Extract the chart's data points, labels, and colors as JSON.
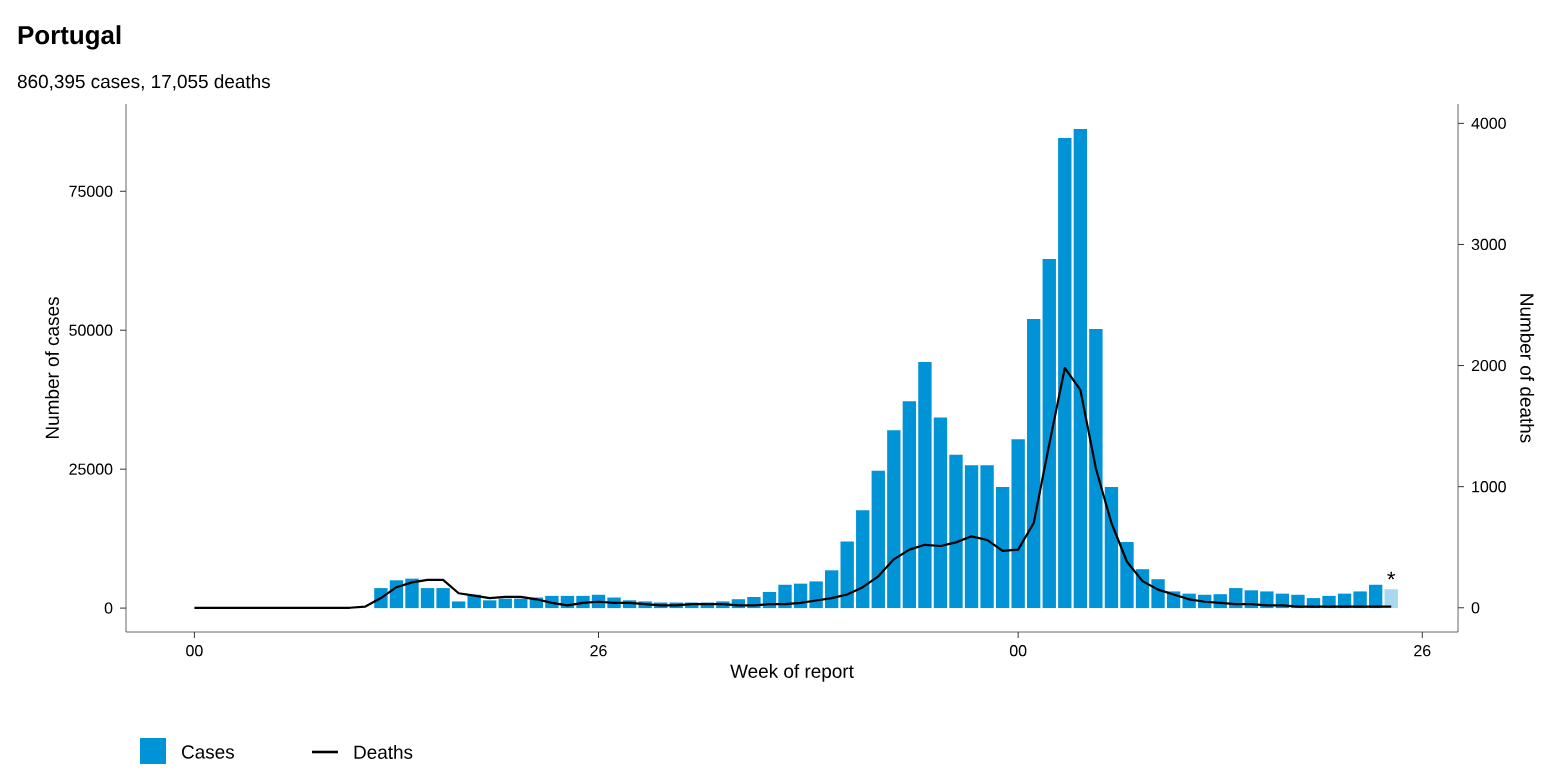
{
  "chart_data": {
    "type": "bar",
    "title": "Portugal",
    "subtitle": "860,395 cases, 17,055 deaths",
    "xlabel": "Week of report",
    "ylabel": "Number of cases",
    "y2label": "Number of deaths",
    "categories": [
      "00",
      null,
      null,
      null,
      null,
      null,
      null,
      null,
      null,
      null,
      null,
      null,
      null,
      null,
      null,
      null,
      null,
      null,
      null,
      null,
      null,
      null,
      null,
      null,
      null,
      null,
      "26",
      null,
      null,
      null,
      null,
      null,
      null,
      null,
      null,
      null,
      null,
      null,
      null,
      null,
      null,
      null,
      null,
      null,
      null,
      null,
      null,
      null,
      null,
      null,
      null,
      null,
      null,
      "00",
      null,
      null,
      null,
      null,
      null,
      null,
      null,
      null,
      null,
      null,
      null,
      null,
      null,
      null,
      null,
      null,
      null,
      null,
      null,
      null,
      null,
      null,
      null,
      null,
      null,
      "26"
    ],
    "ylim": [
      -4300,
      90700
    ],
    "yticks": [
      0,
      25000,
      50000,
      75000
    ],
    "y2lim": [
      -200,
      4160
    ],
    "y2ticks": [
      0,
      1000,
      2000,
      3000,
      4000
    ],
    "series": [
      {
        "name": "Cases",
        "color": "#0093d5",
        "colors": [
          "#0093d5",
          "#0093d5",
          "#0093d5",
          "#0093d5",
          "#0093d5",
          "#0093d5",
          "#0093d5",
          "#0093d5",
          "#0093d5",
          "#0093d5",
          "#0093d5",
          "#0093d5",
          "#0093d5",
          "#0093d5",
          "#0093d5",
          "#0093d5",
          "#0093d5",
          "#0093d5",
          "#0093d5",
          "#0093d5",
          "#0093d5",
          "#0093d5",
          "#0093d5",
          "#0093d5",
          "#0093d5",
          "#0093d5",
          "#0093d5",
          "#0093d5",
          "#0093d5",
          "#0093d5",
          "#0093d5",
          "#0093d5",
          "#0093d5",
          "#0093d5",
          "#0093d5",
          "#0093d5",
          "#0093d5",
          "#0093d5",
          "#0093d5",
          "#0093d5",
          "#0093d5",
          "#0093d5",
          "#0093d5",
          "#0093d5",
          "#0093d5",
          "#0093d5",
          "#0093d5",
          "#0093d5",
          "#0093d5",
          "#0093d5",
          "#0093d5",
          "#0093d5",
          "#0093d5",
          "#0093d5",
          "#0093d5",
          "#0093d5",
          "#0093d5",
          "#0093d5",
          "#0093d5",
          "#0093d5",
          "#0093d5",
          "#0093d5",
          "#0093d5",
          "#0093d5",
          "#0093d5",
          "#0093d5",
          "#0093d5",
          "#0093d5",
          "#0093d5",
          "#0093d5",
          "#0093d5",
          "#0093d5",
          "#0093d5",
          "#0093d5",
          "#0093d5",
          "#0093d5",
          "#0093d5",
          "#a8d8f0",
          "#0093d5",
          "#0093d5"
        ],
        "values": [
          0,
          0,
          0,
          0,
          0,
          0,
          0,
          0,
          0,
          0,
          0,
          0,
          3600,
          5000,
          5300,
          3600,
          3600,
          1200,
          2400,
          1400,
          1700,
          1700,
          1900,
          2200,
          2200,
          2200,
          2400,
          1900,
          1400,
          1200,
          1000,
          1000,
          1000,
          1000,
          1200,
          1600,
          2000,
          2900,
          4200,
          4400,
          4800,
          6800,
          12000,
          17600,
          24700,
          32000,
          37200,
          44300,
          34300,
          27600,
          25700,
          25700,
          21800,
          30400,
          52000,
          62800,
          84600,
          86200,
          50200,
          21800,
          11900,
          7000,
          5200,
          3000,
          2600,
          2400,
          2500,
          3600,
          3200,
          3000,
          2600,
          2400,
          1800,
          2200,
          2600,
          3000,
          4200,
          3400,
          null,
          null
        ]
      },
      {
        "name": "Deaths",
        "type": "line",
        "axis": "y2",
        "color": "#000000",
        "values": [
          0,
          0,
          0,
          0,
          0,
          0,
          0,
          0,
          0,
          0,
          0,
          10,
          80,
          170,
          210,
          230,
          230,
          120,
          100,
          80,
          90,
          90,
          70,
          40,
          20,
          40,
          50,
          40,
          40,
          30,
          20,
          20,
          30,
          30,
          30,
          20,
          20,
          30,
          30,
          40,
          60,
          80,
          110,
          170,
          260,
          400,
          480,
          520,
          510,
          540,
          590,
          560,
          470,
          480,
          700,
          1350,
          1980,
          1800,
          1150,
          700,
          380,
          220,
          150,
          110,
          70,
          50,
          40,
          30,
          30,
          20,
          20,
          10,
          10,
          10,
          10,
          10,
          10,
          10,
          null,
          null
        ]
      }
    ],
    "annotations": [
      "*"
    ],
    "legend": "bottom"
  }
}
